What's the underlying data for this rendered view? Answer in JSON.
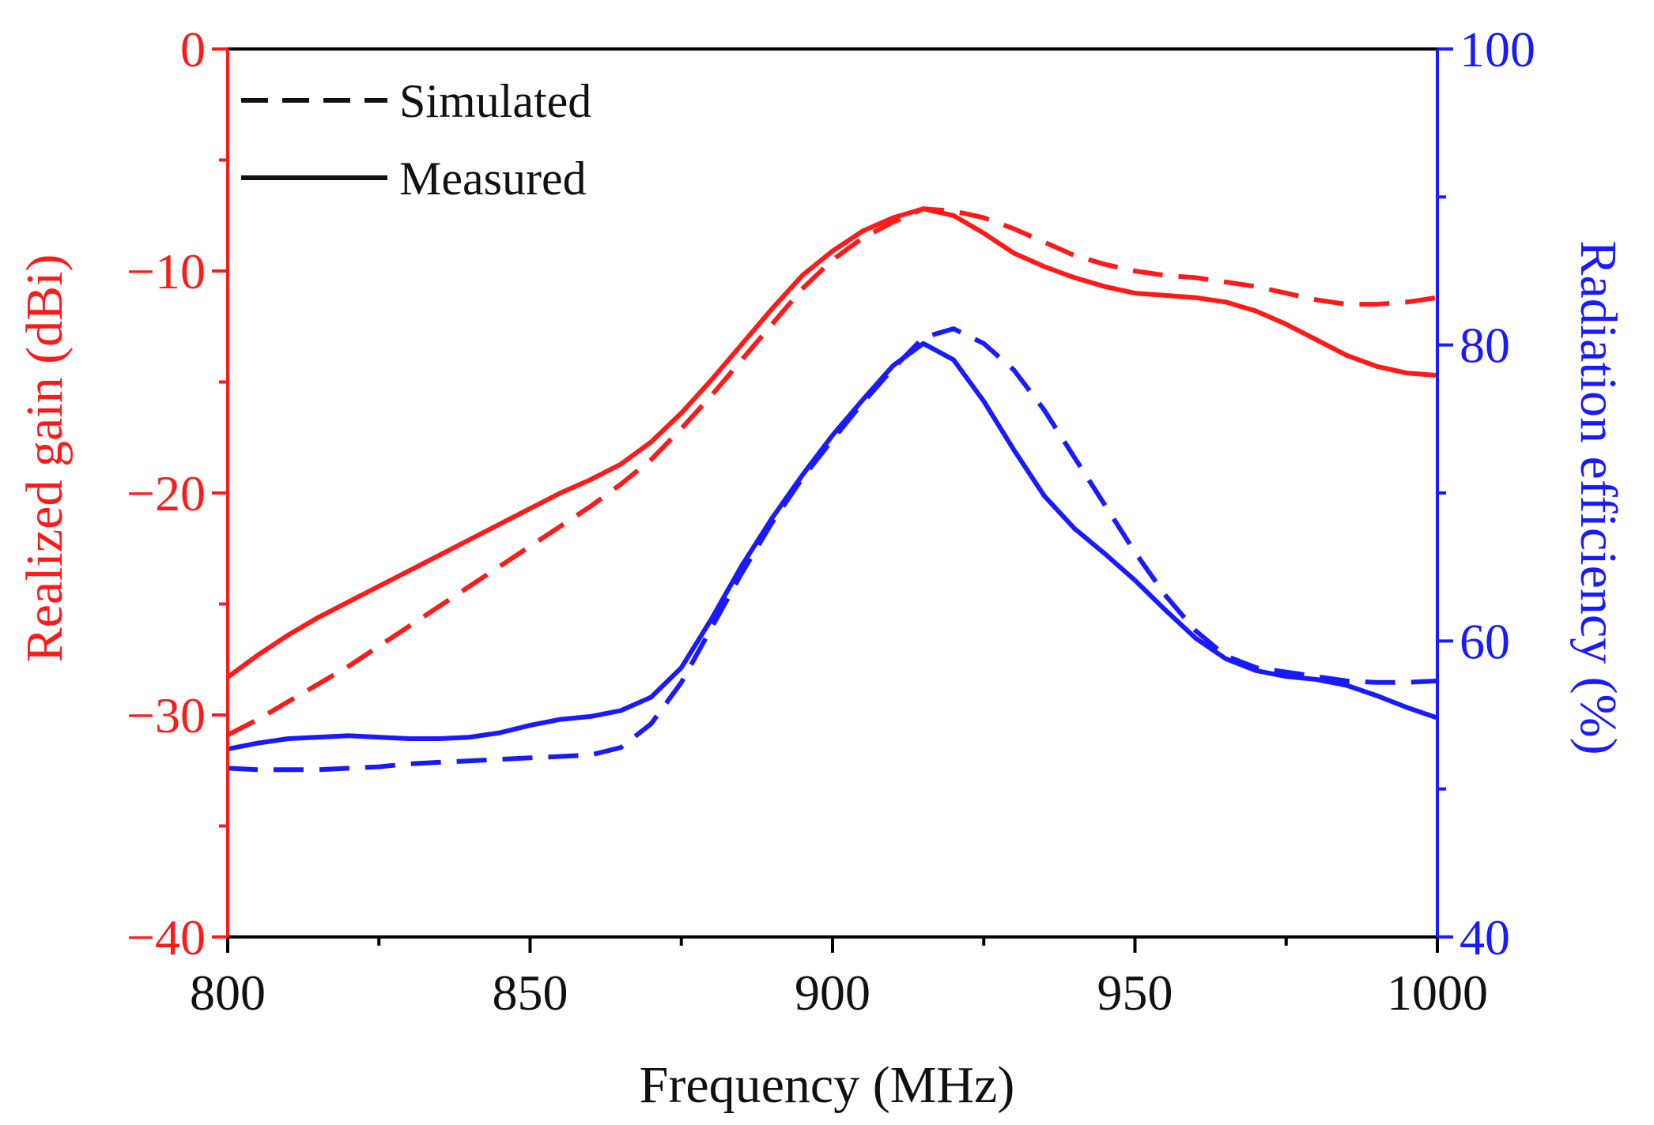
{
  "chart_data": {
    "type": "line",
    "title": "",
    "xlabel": "Frequency (MHz)",
    "ylabel_left": "Realized gain (dBi)",
    "ylabel_right": "Radiation efficiency (%)",
    "xlim": [
      800,
      1000
    ],
    "ylim_left": [
      -40,
      0
    ],
    "ylim_right": [
      40,
      100
    ],
    "x_ticks": [
      800,
      850,
      900,
      950,
      1000
    ],
    "x_tick_labels": [
      "800",
      "850",
      "900",
      "950",
      "1000"
    ],
    "y_left_ticks": [
      0,
      -10,
      -20,
      -30,
      -40
    ],
    "y_left_tick_labels": [
      "0",
      "−10",
      "−20",
      "−30",
      "−40"
    ],
    "y_right_ticks": [
      100,
      80,
      60,
      40
    ],
    "y_right_tick_labels": [
      "100",
      "80",
      "60",
      "40"
    ],
    "grid": false,
    "legend": {
      "position": "top-left",
      "entries": [
        {
          "label": "Simulated",
          "style": "dashed"
        },
        {
          "label": "Measured",
          "style": "solid"
        }
      ]
    },
    "colors": {
      "gain": "#ff1a1a",
      "efficiency": "#1a1aff",
      "frame": "#000000"
    },
    "series": [
      {
        "name": "Measured realized gain",
        "axis": "left",
        "style": "solid",
        "color": "#ff1a1a",
        "x": [
          800,
          805,
          810,
          815,
          820,
          825,
          830,
          835,
          840,
          845,
          850,
          855,
          860,
          865,
          870,
          875,
          880,
          885,
          890,
          895,
          900,
          905,
          910,
          915,
          920,
          925,
          930,
          935,
          940,
          945,
          950,
          955,
          960,
          965,
          970,
          975,
          980,
          985,
          990,
          995,
          1000
        ],
        "y": [
          -28.3,
          -27.3,
          -26.4,
          -25.6,
          -24.9,
          -24.2,
          -23.5,
          -22.8,
          -22.1,
          -21.4,
          -20.7,
          -20.0,
          -19.4,
          -18.7,
          -17.7,
          -16.4,
          -14.9,
          -13.3,
          -11.7,
          -10.2,
          -9.1,
          -8.2,
          -7.6,
          -7.2,
          -7.5,
          -8.3,
          -9.2,
          -9.8,
          -10.3,
          -10.7,
          -11.0,
          -11.1,
          -11.2,
          -11.4,
          -11.8,
          -12.4,
          -13.1,
          -13.8,
          -14.3,
          -14.6,
          -14.7
        ]
      },
      {
        "name": "Simulated realized gain",
        "axis": "left",
        "style": "dashed",
        "color": "#ff1a1a",
        "x": [
          800,
          805,
          810,
          815,
          820,
          825,
          830,
          835,
          840,
          845,
          850,
          855,
          860,
          865,
          870,
          875,
          880,
          885,
          890,
          895,
          900,
          905,
          910,
          915,
          920,
          925,
          930,
          935,
          940,
          945,
          950,
          955,
          960,
          965,
          970,
          975,
          980,
          985,
          990,
          995,
          1000
        ],
        "y": [
          -30.9,
          -30.2,
          -29.4,
          -28.6,
          -27.8,
          -26.9,
          -26.0,
          -25.1,
          -24.2,
          -23.3,
          -22.4,
          -21.5,
          -20.6,
          -19.6,
          -18.5,
          -17.1,
          -15.6,
          -14.0,
          -12.4,
          -10.8,
          -9.5,
          -8.5,
          -7.8,
          -7.2,
          -7.3,
          -7.6,
          -8.1,
          -8.7,
          -9.3,
          -9.7,
          -10.0,
          -10.2,
          -10.3,
          -10.5,
          -10.7,
          -11.0,
          -11.3,
          -11.5,
          -11.5,
          -11.4,
          -11.2
        ]
      },
      {
        "name": "Measured radiation efficiency",
        "axis": "right",
        "style": "solid",
        "color": "#1a1aff",
        "x": [
          800,
          805,
          810,
          815,
          820,
          825,
          830,
          835,
          840,
          845,
          850,
          855,
          860,
          865,
          870,
          875,
          880,
          885,
          890,
          895,
          900,
          905,
          910,
          915,
          920,
          925,
          930,
          935,
          940,
          945,
          950,
          955,
          960,
          965,
          970,
          975,
          980,
          985,
          990,
          995,
          1000
        ],
        "y": [
          52.7,
          53.1,
          53.4,
          53.5,
          53.6,
          53.5,
          53.4,
          53.4,
          53.5,
          53.8,
          54.3,
          54.7,
          54.9,
          55.3,
          56.2,
          58.2,
          61.5,
          65.1,
          68.3,
          71.2,
          73.9,
          76.3,
          78.6,
          80.1,
          79.0,
          76.2,
          72.9,
          69.8,
          67.6,
          65.9,
          64.1,
          62.1,
          60.2,
          58.8,
          58.0,
          57.6,
          57.4,
          57.0,
          56.3,
          55.5,
          54.8
        ]
      },
      {
        "name": "Simulated radiation efficiency",
        "axis": "right",
        "style": "dashed",
        "color": "#1a1aff",
        "x": [
          800,
          805,
          810,
          815,
          820,
          825,
          830,
          835,
          840,
          845,
          850,
          855,
          860,
          865,
          870,
          875,
          880,
          885,
          890,
          895,
          900,
          905,
          910,
          915,
          920,
          925,
          930,
          935,
          940,
          945,
          950,
          955,
          960,
          965,
          970,
          975,
          980,
          985,
          990,
          995,
          1000
        ],
        "y": [
          51.4,
          51.3,
          51.3,
          51.3,
          51.4,
          51.5,
          51.7,
          51.8,
          51.9,
          52.0,
          52.1,
          52.2,
          52.3,
          52.8,
          54.4,
          57.2,
          60.9,
          64.6,
          68.0,
          71.0,
          73.6,
          76.1,
          78.4,
          80.5,
          81.1,
          80.1,
          78.3,
          75.6,
          72.4,
          69.2,
          66.0,
          63.1,
          60.7,
          59.0,
          58.2,
          57.9,
          57.6,
          57.3,
          57.2,
          57.2,
          57.3
        ]
      }
    ]
  }
}
